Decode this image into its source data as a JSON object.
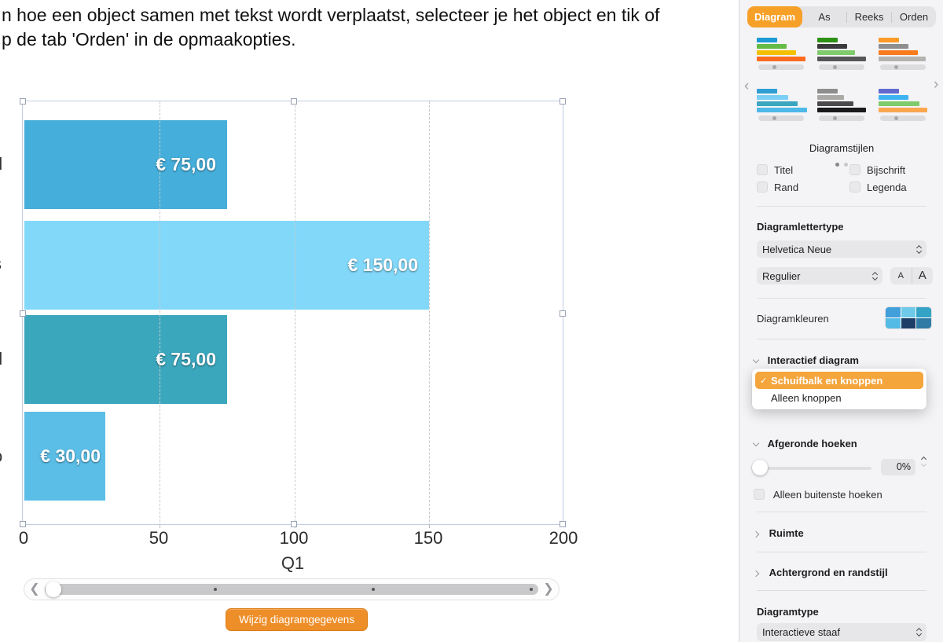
{
  "intro": {
    "line1": "n hoe een object samen met tekst wordt verplaatst, selecteer je het object en tik of",
    "line2": "p de tab 'Orden' in de opmaakopties."
  },
  "chart_data": {
    "type": "bar",
    "orientation": "horizontal",
    "series": [
      {
        "name": "Q1",
        "values": [
          75,
          150,
          75,
          30
        ]
      }
    ],
    "value_labels": [
      "€ 75,00",
      "€ 150,00",
      "€ 75,00",
      "€ 30,00"
    ],
    "bar_colors": [
      "#45aeda",
      "#82d8f9",
      "#3ba7bd",
      "#5bbee7"
    ],
    "category_fragments": [
      "d",
      "s",
      "d",
      "o"
    ],
    "x_ticks": [
      "0",
      "50",
      "100",
      "150",
      "200"
    ],
    "xlim": [
      0,
      200
    ],
    "group_label": "Q1",
    "grid": "vertical-dashed",
    "legend": "none",
    "edit_button_label": "Wijzig diagramgegevens"
  },
  "chart_scrollbar": {
    "dot_fractions": [
      0.345,
      0.665,
      0.985
    ]
  },
  "sidebar": {
    "tabs": [
      {
        "label": "Diagram",
        "active": true
      },
      {
        "label": "As",
        "active": false
      },
      {
        "label": "Reeks",
        "active": false
      },
      {
        "label": "Orden",
        "active": false
      }
    ],
    "styles_title": "Diagramstijlen",
    "style_thumbnails": [
      {
        "bars": [
          {
            "c": "#1c9ad6",
            "w": 26
          },
          {
            "c": "#64bb46",
            "w": 38
          },
          {
            "c": "#f5c000",
            "w": 50
          },
          {
            "c": "#fb6a1e",
            "w": 62
          }
        ]
      },
      {
        "bars": [
          {
            "c": "#2e9015",
            "w": 26
          },
          {
            "c": "#3a3a3c",
            "w": 38
          },
          {
            "c": "#7fcb6b",
            "w": 48
          },
          {
            "c": "#555557",
            "w": 62
          }
        ]
      },
      {
        "bars": [
          {
            "c": "#fb9a28",
            "w": 26
          },
          {
            "c": "#8e8e8e",
            "w": 38
          },
          {
            "c": "#f97b1c",
            "w": 50
          },
          {
            "c": "#b5b3b0",
            "w": 60
          }
        ]
      },
      {
        "bars": [
          {
            "c": "#2d9fd3",
            "w": 26
          },
          {
            "c": "#79cff4",
            "w": 40
          },
          {
            "c": "#3ba6c0",
            "w": 52
          },
          {
            "c": "#4fb8e8",
            "w": 64
          }
        ]
      },
      {
        "bars": [
          {
            "c": "#8e8e8e",
            "w": 26
          },
          {
            "c": "#aba9a6",
            "w": 34
          },
          {
            "c": "#4a4a4c",
            "w": 46
          },
          {
            "c": "#1a1a1a",
            "w": 62
          }
        ]
      },
      {
        "bars": [
          {
            "c": "#6269cf",
            "w": 26
          },
          {
            "c": "#3fb3f2",
            "w": 38
          },
          {
            "c": "#7fcb6b",
            "w": 52
          },
          {
            "c": "#fba74f",
            "w": 62
          }
        ]
      }
    ],
    "checkboxes": [
      {
        "label": "Titel",
        "checked": false
      },
      {
        "label": "Bijschrift",
        "checked": false
      },
      {
        "label": "Rand",
        "checked": false
      },
      {
        "label": "Legenda",
        "checked": false
      }
    ],
    "font_section": {
      "heading": "Diagramlettertype",
      "family": "Helvetica Neue",
      "weight": "Regulier",
      "size_small": "A",
      "size_large": "A"
    },
    "colors_section": {
      "label": "Diagramkleuren",
      "swatch_colors": [
        "#419fd9",
        "#6fc9e9",
        "#35a3c6",
        "#54bbe4",
        "#1d3e66",
        "#2f7ba6"
      ]
    },
    "interactive_section": {
      "label": "Interactief diagram",
      "options": [
        {
          "label": "Schuifbalk en knoppen",
          "checked": true
        },
        {
          "label": "Alleen knoppen",
          "checked": false
        }
      ]
    },
    "corners_section": {
      "label": "Afgeronde hoeken",
      "value": "0%",
      "checkbox_label": "Alleen buitenste hoeken"
    },
    "ruimte_label": "Ruimte",
    "background_label": "Achtergrond en randstijl",
    "type_section": {
      "heading": "Diagramtype",
      "value": "Interactieve staaf"
    }
  }
}
